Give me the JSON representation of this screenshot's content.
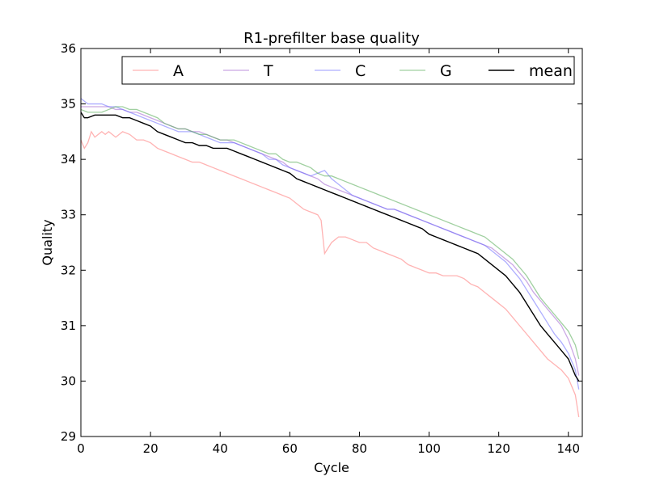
{
  "chart_data": {
    "type": "line",
    "title": "R1-prefilter base quality",
    "xlabel": "Cycle",
    "ylabel": "Quality",
    "xlim": [
      0,
      144
    ],
    "ylim": [
      29,
      36
    ],
    "xticks": [
      0,
      20,
      40,
      60,
      80,
      100,
      120,
      140
    ],
    "yticks": [
      29,
      30,
      31,
      32,
      33,
      34,
      35,
      36
    ],
    "grid": false,
    "legend_position": "top-right",
    "series": [
      {
        "name": "A",
        "color": "#ff8080",
        "opacity": 0.6,
        "x": [
          0,
          1,
          2,
          3,
          4,
          5,
          6,
          7,
          8,
          9,
          10,
          12,
          14,
          16,
          18,
          20,
          22,
          24,
          26,
          28,
          30,
          32,
          34,
          36,
          38,
          40,
          42,
          44,
          46,
          48,
          50,
          52,
          54,
          56,
          58,
          60,
          62,
          64,
          66,
          68,
          69,
          70,
          72,
          74,
          76,
          78,
          80,
          82,
          84,
          86,
          88,
          90,
          92,
          94,
          96,
          98,
          100,
          102,
          104,
          106,
          108,
          110,
          112,
          114,
          116,
          118,
          120,
          122,
          124,
          126,
          128,
          130,
          132,
          134,
          136,
          138,
          140,
          142,
          143
        ],
        "values": [
          34.35,
          34.2,
          34.3,
          34.5,
          34.4,
          34.45,
          34.5,
          34.45,
          34.5,
          34.45,
          34.4,
          34.5,
          34.45,
          34.35,
          34.35,
          34.3,
          34.2,
          34.15,
          34.1,
          34.05,
          34.0,
          33.95,
          33.95,
          33.9,
          33.85,
          33.8,
          33.75,
          33.7,
          33.65,
          33.6,
          33.55,
          33.5,
          33.45,
          33.4,
          33.35,
          33.3,
          33.2,
          33.1,
          33.05,
          33.0,
          32.9,
          32.3,
          32.5,
          32.6,
          32.6,
          32.55,
          32.5,
          32.5,
          32.4,
          32.35,
          32.3,
          32.25,
          32.2,
          32.1,
          32.05,
          32.0,
          31.95,
          31.95,
          31.9,
          31.9,
          31.9,
          31.85,
          31.75,
          31.7,
          31.6,
          31.5,
          31.4,
          31.3,
          31.15,
          31.0,
          30.85,
          30.7,
          30.55,
          30.4,
          30.3,
          30.2,
          30.05,
          29.75,
          29.35
        ]
      },
      {
        "name": "T",
        "color": "#a060d0",
        "opacity": 0.55,
        "x": [
          0,
          2,
          4,
          6,
          8,
          10,
          12,
          14,
          16,
          18,
          20,
          22,
          24,
          26,
          28,
          30,
          32,
          34,
          36,
          38,
          40,
          42,
          44,
          46,
          48,
          50,
          52,
          54,
          56,
          58,
          60,
          62,
          64,
          66,
          68,
          70,
          72,
          74,
          76,
          78,
          80,
          82,
          84,
          86,
          88,
          90,
          92,
          94,
          96,
          98,
          100,
          102,
          104,
          106,
          108,
          110,
          112,
          114,
          116,
          118,
          120,
          122,
          124,
          126,
          128,
          130,
          132,
          134,
          136,
          138,
          140,
          142,
          143
        ],
        "values": [
          34.95,
          34.95,
          34.95,
          34.95,
          34.95,
          34.9,
          34.9,
          34.85,
          34.85,
          34.8,
          34.75,
          34.7,
          34.65,
          34.6,
          34.55,
          34.55,
          34.5,
          34.5,
          34.45,
          34.4,
          34.35,
          34.35,
          34.3,
          34.25,
          34.2,
          34.15,
          34.1,
          34.05,
          34.0,
          33.95,
          33.85,
          33.8,
          33.75,
          33.7,
          33.65,
          33.55,
          33.5,
          33.45,
          33.4,
          33.35,
          33.3,
          33.25,
          33.2,
          33.15,
          33.1,
          33.1,
          33.05,
          33.0,
          32.95,
          32.9,
          32.85,
          32.8,
          32.75,
          32.7,
          32.65,
          32.6,
          32.55,
          32.5,
          32.45,
          32.4,
          32.3,
          32.2,
          32.1,
          31.95,
          31.8,
          31.6,
          31.45,
          31.3,
          31.15,
          31.0,
          30.75,
          30.4,
          30.1
        ]
      },
      {
        "name": "C",
        "color": "#6b6bff",
        "opacity": 0.55,
        "x": [
          0,
          2,
          4,
          6,
          8,
          10,
          12,
          14,
          16,
          18,
          20,
          22,
          24,
          26,
          28,
          30,
          32,
          34,
          36,
          38,
          40,
          42,
          44,
          46,
          48,
          50,
          52,
          54,
          56,
          58,
          60,
          62,
          64,
          66,
          68,
          70,
          72,
          74,
          76,
          78,
          80,
          82,
          84,
          86,
          88,
          90,
          92,
          94,
          96,
          98,
          100,
          102,
          104,
          106,
          108,
          110,
          112,
          114,
          116,
          118,
          120,
          122,
          124,
          126,
          128,
          130,
          132,
          134,
          136,
          138,
          140,
          142,
          143
        ],
        "values": [
          35.1,
          35.0,
          35.0,
          35.0,
          34.95,
          34.95,
          34.9,
          34.85,
          34.8,
          34.75,
          34.7,
          34.65,
          34.6,
          34.55,
          34.5,
          34.5,
          34.5,
          34.45,
          34.4,
          34.35,
          34.3,
          34.3,
          34.3,
          34.25,
          34.2,
          34.15,
          34.1,
          34.0,
          34.0,
          33.9,
          33.85,
          33.8,
          33.75,
          33.7,
          33.75,
          33.8,
          33.65,
          33.55,
          33.45,
          33.35,
          33.3,
          33.25,
          33.2,
          33.15,
          33.1,
          33.1,
          33.05,
          33.0,
          32.95,
          32.9,
          32.85,
          32.8,
          32.75,
          32.7,
          32.65,
          32.6,
          32.55,
          32.5,
          32.45,
          32.35,
          32.25,
          32.15,
          32.0,
          31.85,
          31.65,
          31.45,
          31.25,
          31.05,
          30.85,
          30.7,
          30.5,
          30.2,
          29.85
        ]
      },
      {
        "name": "G",
        "color": "#60b060",
        "opacity": 0.6,
        "x": [
          0,
          2,
          4,
          6,
          8,
          10,
          12,
          14,
          16,
          18,
          20,
          22,
          24,
          26,
          28,
          30,
          32,
          34,
          36,
          38,
          40,
          42,
          44,
          46,
          48,
          50,
          52,
          54,
          56,
          58,
          60,
          62,
          64,
          66,
          68,
          70,
          72,
          74,
          76,
          78,
          80,
          82,
          84,
          86,
          88,
          90,
          92,
          94,
          96,
          98,
          100,
          102,
          104,
          106,
          108,
          110,
          112,
          114,
          116,
          118,
          120,
          122,
          124,
          126,
          128,
          130,
          132,
          134,
          136,
          138,
          140,
          142,
          143
        ],
        "values": [
          34.9,
          34.85,
          34.85,
          34.85,
          34.9,
          34.95,
          34.95,
          34.9,
          34.9,
          34.85,
          34.8,
          34.75,
          34.65,
          34.6,
          34.55,
          34.55,
          34.5,
          34.45,
          34.45,
          34.4,
          34.35,
          34.35,
          34.35,
          34.3,
          34.25,
          34.2,
          34.15,
          34.1,
          34.1,
          34.0,
          33.95,
          33.95,
          33.9,
          33.85,
          33.75,
          33.7,
          33.7,
          33.65,
          33.6,
          33.55,
          33.5,
          33.45,
          33.4,
          33.35,
          33.3,
          33.25,
          33.2,
          33.15,
          33.1,
          33.05,
          33.0,
          32.95,
          32.9,
          32.85,
          32.8,
          32.75,
          32.7,
          32.65,
          32.6,
          32.5,
          32.4,
          32.3,
          32.2,
          32.05,
          31.9,
          31.7,
          31.5,
          31.35,
          31.2,
          31.05,
          30.9,
          30.65,
          30.4
        ]
      },
      {
        "name": "mean",
        "color": "#000000",
        "opacity": 1.0,
        "x": [
          0,
          1,
          2,
          4,
          6,
          8,
          10,
          12,
          14,
          16,
          18,
          20,
          22,
          24,
          26,
          28,
          30,
          32,
          34,
          36,
          38,
          40,
          42,
          44,
          46,
          48,
          50,
          52,
          54,
          56,
          58,
          60,
          62,
          64,
          66,
          68,
          70,
          72,
          74,
          76,
          78,
          80,
          82,
          84,
          86,
          88,
          90,
          92,
          94,
          96,
          98,
          100,
          102,
          104,
          106,
          108,
          110,
          112,
          114,
          116,
          118,
          120,
          122,
          124,
          126,
          128,
          130,
          132,
          134,
          136,
          138,
          140,
          142,
          143
        ],
        "values": [
          34.85,
          34.75,
          34.75,
          34.8,
          34.8,
          34.8,
          34.8,
          34.75,
          34.75,
          34.7,
          34.65,
          34.6,
          34.5,
          34.45,
          34.4,
          34.35,
          34.3,
          34.3,
          34.25,
          34.25,
          34.2,
          34.2,
          34.2,
          34.15,
          34.1,
          34.05,
          34.0,
          33.95,
          33.9,
          33.85,
          33.8,
          33.75,
          33.65,
          33.6,
          33.55,
          33.5,
          33.45,
          33.4,
          33.35,
          33.3,
          33.25,
          33.2,
          33.15,
          33.1,
          33.05,
          33.0,
          32.95,
          32.9,
          32.85,
          32.8,
          32.75,
          32.65,
          32.6,
          32.55,
          32.5,
          32.45,
          32.4,
          32.35,
          32.3,
          32.2,
          32.1,
          32.0,
          31.9,
          31.75,
          31.6,
          31.4,
          31.2,
          31.0,
          30.85,
          30.7,
          30.55,
          30.4,
          30.1,
          30.0
        ]
      }
    ]
  }
}
